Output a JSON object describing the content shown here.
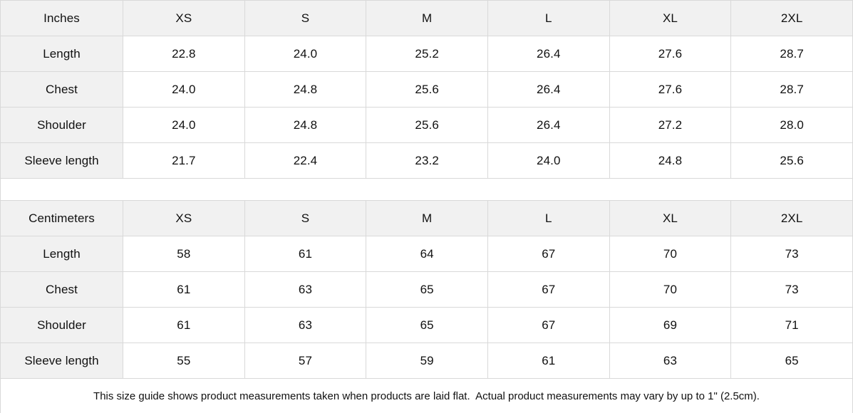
{
  "colors": {
    "header_background": "#f1f1f1",
    "cell_background": "#ffffff",
    "border": "#d9d9d9",
    "text": "#111111"
  },
  "size_guide": {
    "tables": [
      {
        "unit_label": "Inches",
        "sizes": [
          "XS",
          "S",
          "M",
          "L",
          "XL",
          "2XL"
        ],
        "rows": [
          {
            "label": "Length",
            "values": [
              "22.8",
              "24.0",
              "25.2",
              "26.4",
              "27.6",
              "28.7"
            ]
          },
          {
            "label": "Chest",
            "values": [
              "24.0",
              "24.8",
              "25.6",
              "26.4",
              "27.6",
              "28.7"
            ]
          },
          {
            "label": "Shoulder",
            "values": [
              "24.0",
              "24.8",
              "25.6",
              "26.4",
              "27.2",
              "28.0"
            ]
          },
          {
            "label": "Sleeve length",
            "values": [
              "21.7",
              "22.4",
              "23.2",
              "24.0",
              "24.8",
              "25.6"
            ]
          }
        ]
      },
      {
        "unit_label": "Centimeters",
        "sizes": [
          "XS",
          "S",
          "M",
          "L",
          "XL",
          "2XL"
        ],
        "rows": [
          {
            "label": "Length",
            "values": [
              "58",
              "61",
              "64",
              "67",
              "70",
              "73"
            ]
          },
          {
            "label": "Chest",
            "values": [
              "61",
              "63",
              "65",
              "67",
              "70",
              "73"
            ]
          },
          {
            "label": "Shoulder",
            "values": [
              "61",
              "63",
              "65",
              "67",
              "69",
              "71"
            ]
          },
          {
            "label": "Sleeve length",
            "values": [
              "55",
              "57",
              "59",
              "61",
              "63",
              "65"
            ]
          }
        ]
      }
    ],
    "footnote": "This size guide shows product measurements taken when products are laid flat.  Actual product measurements may vary by up to 1\" (2.5cm)."
  }
}
